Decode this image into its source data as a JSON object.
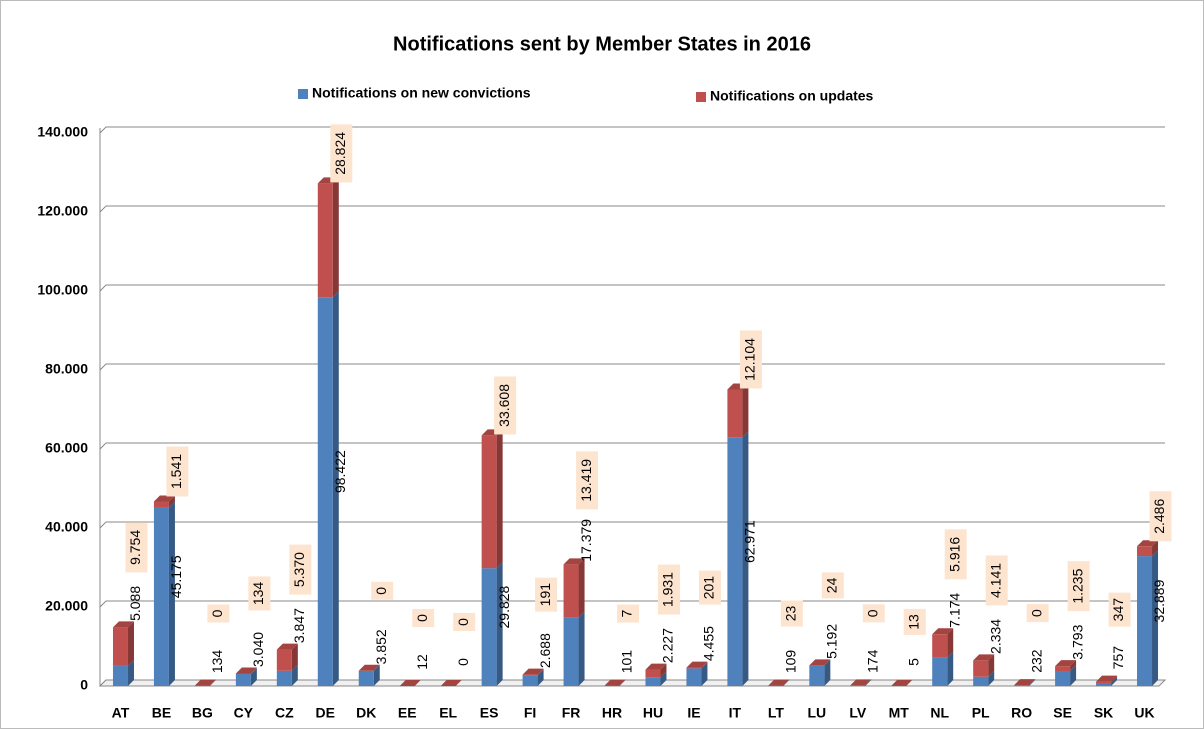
{
  "chart_data": {
    "type": "stacked_bar",
    "title": "Notifications sent by Member States in 2016",
    "categories": [
      "AT",
      "BE",
      "BG",
      "CY",
      "CZ",
      "DE",
      "DK",
      "EE",
      "EL",
      "ES",
      "FI",
      "FR",
      "HR",
      "HU",
      "IE",
      "IT",
      "LT",
      "LU",
      "LV",
      "MT",
      "NL",
      "PL",
      "RO",
      "SE",
      "SK",
      "UK"
    ],
    "series": [
      {
        "name": "Notifications on new convictions",
        "color": "#4f81bd",
        "values": [
          5088,
          45175,
          134,
          3040,
          3847,
          98422,
          3852,
          12,
          0,
          29828,
          2688,
          17379,
          101,
          2227,
          4455,
          62971,
          109,
          5192,
          174,
          5,
          7174,
          2334,
          232,
          3793,
          757,
          32889
        ],
        "value_labels": [
          "5.088",
          "45.175",
          "134",
          "3.040",
          "3.847",
          "98.422",
          "3.852",
          "12",
          "0",
          "29.828",
          "2.688",
          "17.379",
          "101",
          "2.227",
          "4.455",
          "62.971",
          "109",
          "5.192",
          "174",
          "5",
          "7.174",
          "2.334",
          "232",
          "3.793",
          "757",
          "32.889"
        ]
      },
      {
        "name": "Notifications on updates",
        "color": "#c0504d",
        "values": [
          9754,
          1541,
          0,
          134,
          5370,
          28824,
          0,
          0,
          0,
          33608,
          191,
          13419,
          7,
          1931,
          201,
          12104,
          23,
          24,
          0,
          13,
          5916,
          4141,
          0,
          1235,
          347,
          2486
        ],
        "value_labels": [
          "9.754",
          "1.541",
          "0",
          "134",
          "5.370",
          "28.824",
          "0",
          "0",
          "0",
          "33.608",
          "191",
          "13.419",
          "7",
          "1.931",
          "201",
          "12.104",
          "23",
          "24",
          "0",
          "13",
          "5.916",
          "4.141",
          "0",
          "1.235",
          "347",
          "2.486"
        ]
      }
    ],
    "ylim": [
      0,
      140000
    ],
    "yticks": [
      0,
      {
        "value": 20000,
        "label": "20.000"
      },
      {
        "value": 40000,
        "label": "40.000"
      },
      {
        "value": 60000,
        "label": "60.000"
      },
      {
        "value": 80000,
        "label": "80.000"
      },
      {
        "value": 100000,
        "label": "100.000"
      },
      {
        "value": 120000,
        "label": "120.000"
      },
      {
        "value": 140000,
        "label": "140.000"
      }
    ],
    "grid": true
  }
}
